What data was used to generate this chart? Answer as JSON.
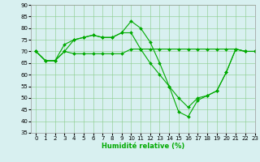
{
  "line1": {
    "x": [
      0,
      1,
      2,
      3,
      4,
      5,
      6,
      7,
      8,
      9,
      10,
      11,
      12,
      13,
      14,
      15,
      16,
      17,
      18,
      19,
      20,
      21,
      22,
      23
    ],
    "y": [
      70,
      66,
      66,
      70,
      69,
      69,
      69,
      69,
      69,
      69,
      71,
      71,
      71,
      71,
      71,
      71,
      71,
      71,
      71,
      71,
      71,
      71,
      70,
      70
    ]
  },
  "line2": {
    "x": [
      0,
      1,
      2,
      3,
      4,
      5,
      6,
      7,
      8,
      9,
      10,
      11,
      12,
      13,
      14,
      15,
      16,
      17,
      18,
      19,
      20,
      21,
      22,
      23
    ],
    "y": [
      70,
      66,
      66,
      73,
      75,
      76,
      77,
      76,
      76,
      78,
      83,
      80,
      74,
      65,
      55,
      44,
      42,
      49,
      51,
      53,
      61,
      71,
      70,
      70
    ]
  },
  "line3": {
    "x": [
      0,
      1,
      2,
      3,
      4,
      5,
      6,
      7,
      8,
      9,
      10,
      11,
      12,
      13,
      14,
      15,
      16,
      17,
      18,
      19,
      20,
      21,
      22,
      23
    ],
    "y": [
      70,
      66,
      66,
      70,
      75,
      76,
      77,
      76,
      76,
      78,
      78,
      71,
      65,
      60,
      55,
      50,
      46,
      50,
      51,
      53,
      61,
      71,
      70,
      70
    ]
  },
  "line_color": "#00aa00",
  "marker": "D",
  "marker_size": 2,
  "bg_color": "#d8f0f0",
  "grid_color": "#88cc88",
  "xlabel": "Humidité relative (%)",
  "ylim": [
    35,
    90
  ],
  "xlim": [
    -0.5,
    23
  ],
  "yticks": [
    35,
    40,
    45,
    50,
    55,
    60,
    65,
    70,
    75,
    80,
    85,
    90
  ],
  "xticks": [
    0,
    1,
    2,
    3,
    4,
    5,
    6,
    7,
    8,
    9,
    10,
    11,
    12,
    13,
    14,
    15,
    16,
    17,
    18,
    19,
    20,
    21,
    22,
    23
  ],
  "tick_fontsize": 5,
  "xlabel_fontsize": 6,
  "linewidth": 0.8
}
